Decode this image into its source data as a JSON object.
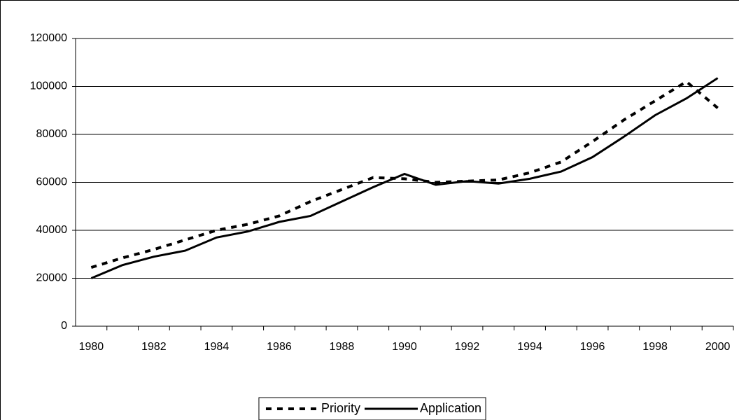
{
  "chart_data": {
    "type": "line",
    "categories": [
      "1980",
      null,
      "1982",
      null,
      "1984",
      null,
      "1986",
      null,
      "1988",
      null,
      "1990",
      null,
      "1992",
      null,
      "1994",
      null,
      "1996",
      null,
      "1998",
      null,
      "2000"
    ],
    "series": [
      {
        "name": "Priority",
        "color": "#000000",
        "style": "dashed",
        "values": [
          24500,
          28500,
          32000,
          36000,
          40000,
          42500,
          46000,
          52000,
          57000,
          62000,
          61500,
          60000,
          60500,
          61000,
          64000,
          68500,
          77000,
          86000,
          94000,
          102000,
          91000
        ]
      },
      {
        "name": "Application",
        "color": "#000000",
        "style": "solid",
        "values": [
          20000,
          25500,
          29000,
          31500,
          37000,
          39500,
          43500,
          46000,
          52000,
          58000,
          63500,
          59000,
          60500,
          59500,
          61500,
          64500,
          70500,
          79000,
          88000,
          95000,
          103500
        ]
      }
    ],
    "ylim": [
      0,
      120000
    ],
    "yticks": [
      0,
      20000,
      40000,
      60000,
      80000,
      100000,
      120000
    ],
    "grid": true,
    "legend": "bottom"
  }
}
